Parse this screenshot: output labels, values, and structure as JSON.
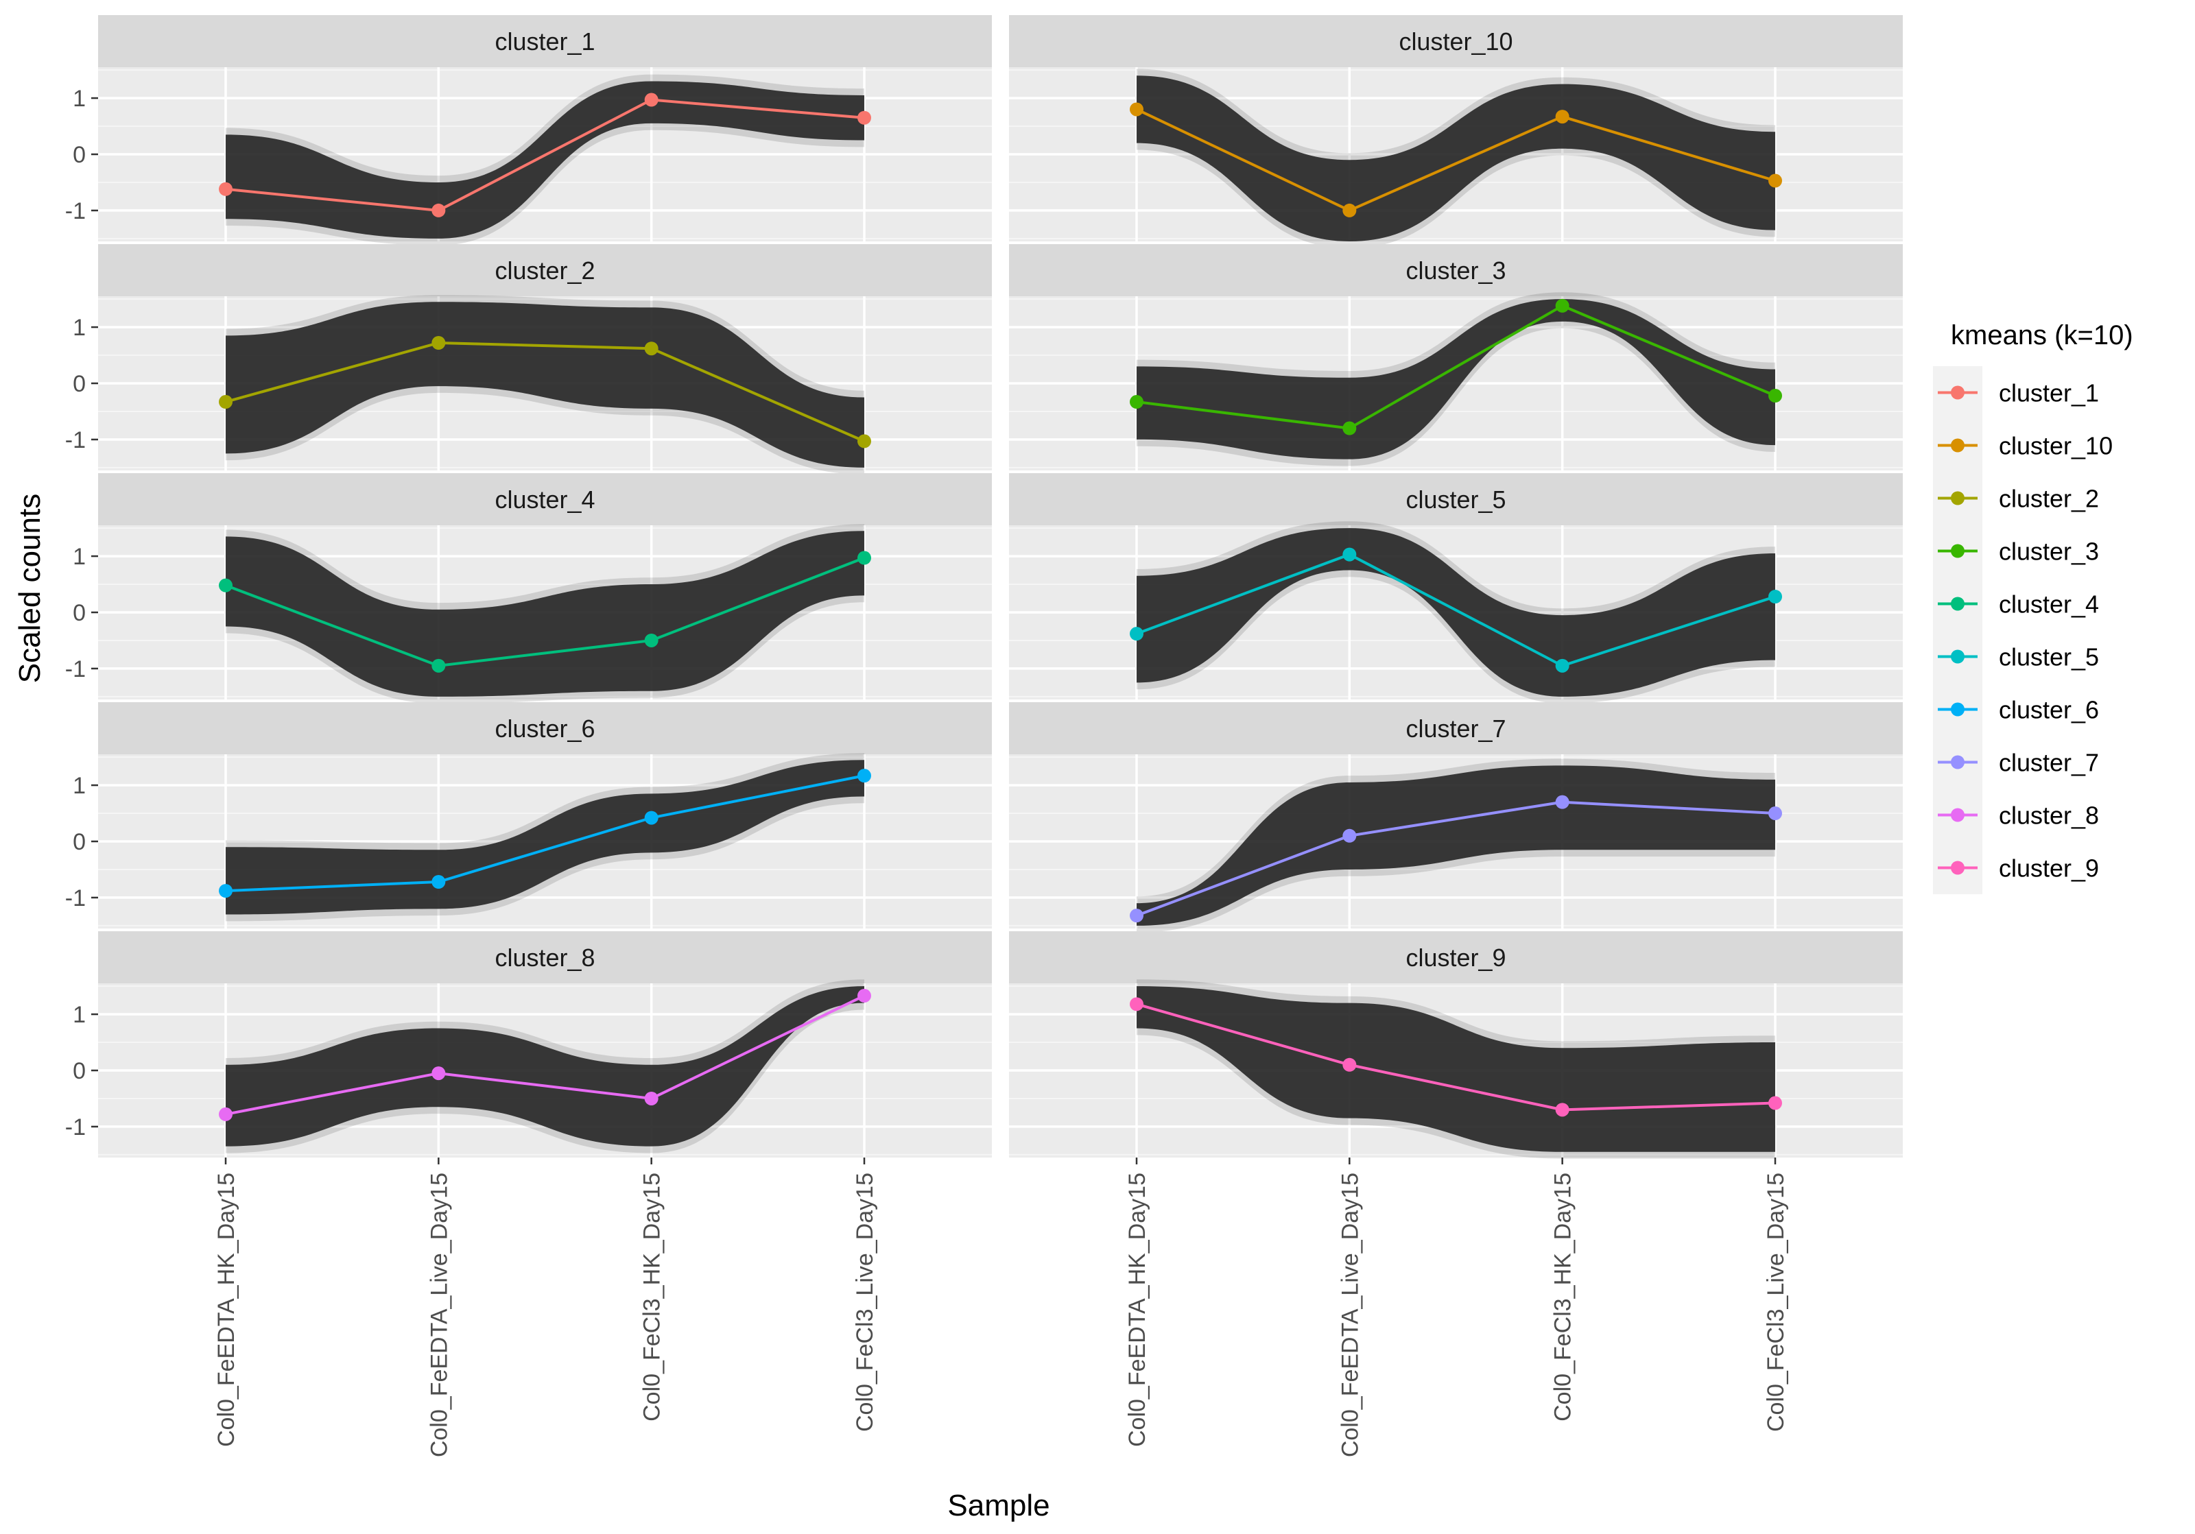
{
  "chart_data": {
    "type": "line",
    "layout": "faceted 5x2",
    "x": [
      "Col0_FeEDTA_HK_Day15",
      "Col0_FeEDTA_Live_Day15",
      "Col0_FeCl3_HK_Day15",
      "Col0_FeCl3_Live_Day15"
    ],
    "xlabel": "Sample",
    "ylabel": "Scaled counts",
    "y_ticks": [
      -1,
      0,
      1
    ],
    "y_tick_labels": [
      "-1",
      "0",
      "1"
    ],
    "ylim": [
      -1.55,
      1.55
    ],
    "grid": true,
    "legend": {
      "title": "kmeans (k=10)",
      "position": "right"
    },
    "series": [
      {
        "name": "cluster_1",
        "color": "#F8766D",
        "values": [
          -0.62,
          -1.0,
          0.97,
          0.65
        ],
        "band_upper": [
          0.35,
          -0.5,
          1.3,
          1.05
        ],
        "band_lower": [
          -1.15,
          -1.5,
          0.55,
          0.25
        ]
      },
      {
        "name": "cluster_10",
        "color": "#D89000",
        "values": [
          0.8,
          -1.0,
          0.67,
          -0.47
        ],
        "band_upper": [
          1.4,
          -0.1,
          1.25,
          0.4
        ],
        "band_lower": [
          0.2,
          -1.55,
          0.1,
          -1.35
        ]
      },
      {
        "name": "cluster_2",
        "color": "#A3A500",
        "values": [
          -0.33,
          0.72,
          0.62,
          -1.03
        ],
        "band_upper": [
          0.85,
          1.45,
          1.35,
          -0.25
        ],
        "band_lower": [
          -1.25,
          -0.05,
          -0.45,
          -1.5
        ]
      },
      {
        "name": "cluster_3",
        "color": "#39B600",
        "values": [
          -0.33,
          -0.8,
          1.38,
          -0.22
        ],
        "band_upper": [
          0.3,
          0.1,
          1.5,
          0.25
        ],
        "band_lower": [
          -1.0,
          -1.35,
          1.1,
          -1.1
        ]
      },
      {
        "name": "cluster_4",
        "color": "#00BF7D",
        "values": [
          0.48,
          -0.95,
          -0.5,
          0.97
        ],
        "band_upper": [
          1.35,
          0.05,
          0.5,
          1.45
        ],
        "band_lower": [
          -0.25,
          -1.5,
          -1.4,
          0.3
        ]
      },
      {
        "name": "cluster_5",
        "color": "#00BFC4",
        "values": [
          -0.38,
          1.03,
          -0.95,
          0.28
        ],
        "band_upper": [
          0.65,
          1.5,
          -0.05,
          1.05
        ],
        "band_lower": [
          -1.25,
          0.75,
          -1.5,
          -0.85
        ]
      },
      {
        "name": "cluster_6",
        "color": "#00B0F6",
        "values": [
          -0.88,
          -0.72,
          0.42,
          1.17
        ],
        "band_upper": [
          -0.1,
          -0.15,
          0.85,
          1.45
        ],
        "band_lower": [
          -1.3,
          -1.2,
          -0.2,
          0.8
        ]
      },
      {
        "name": "cluster_7",
        "color": "#9590FF",
        "values": [
          -1.32,
          0.1,
          0.7,
          0.5
        ],
        "band_upper": [
          -1.1,
          1.05,
          1.35,
          1.1
        ],
        "band_lower": [
          -1.5,
          -0.5,
          -0.15,
          -0.15
        ]
      },
      {
        "name": "cluster_8",
        "color": "#E76BF3",
        "values": [
          -0.78,
          -0.05,
          -0.5,
          1.33
        ],
        "band_upper": [
          0.1,
          0.75,
          0.1,
          1.5
        ],
        "band_lower": [
          -1.35,
          -0.65,
          -1.35,
          1.2
        ]
      },
      {
        "name": "cluster_9",
        "color": "#FF62BC",
        "values": [
          1.18,
          0.1,
          -0.7,
          -0.58
        ],
        "band_upper": [
          1.5,
          1.2,
          0.4,
          0.5
        ],
        "band_lower": [
          0.75,
          -0.85,
          -1.45,
          -1.45
        ]
      }
    ]
  }
}
